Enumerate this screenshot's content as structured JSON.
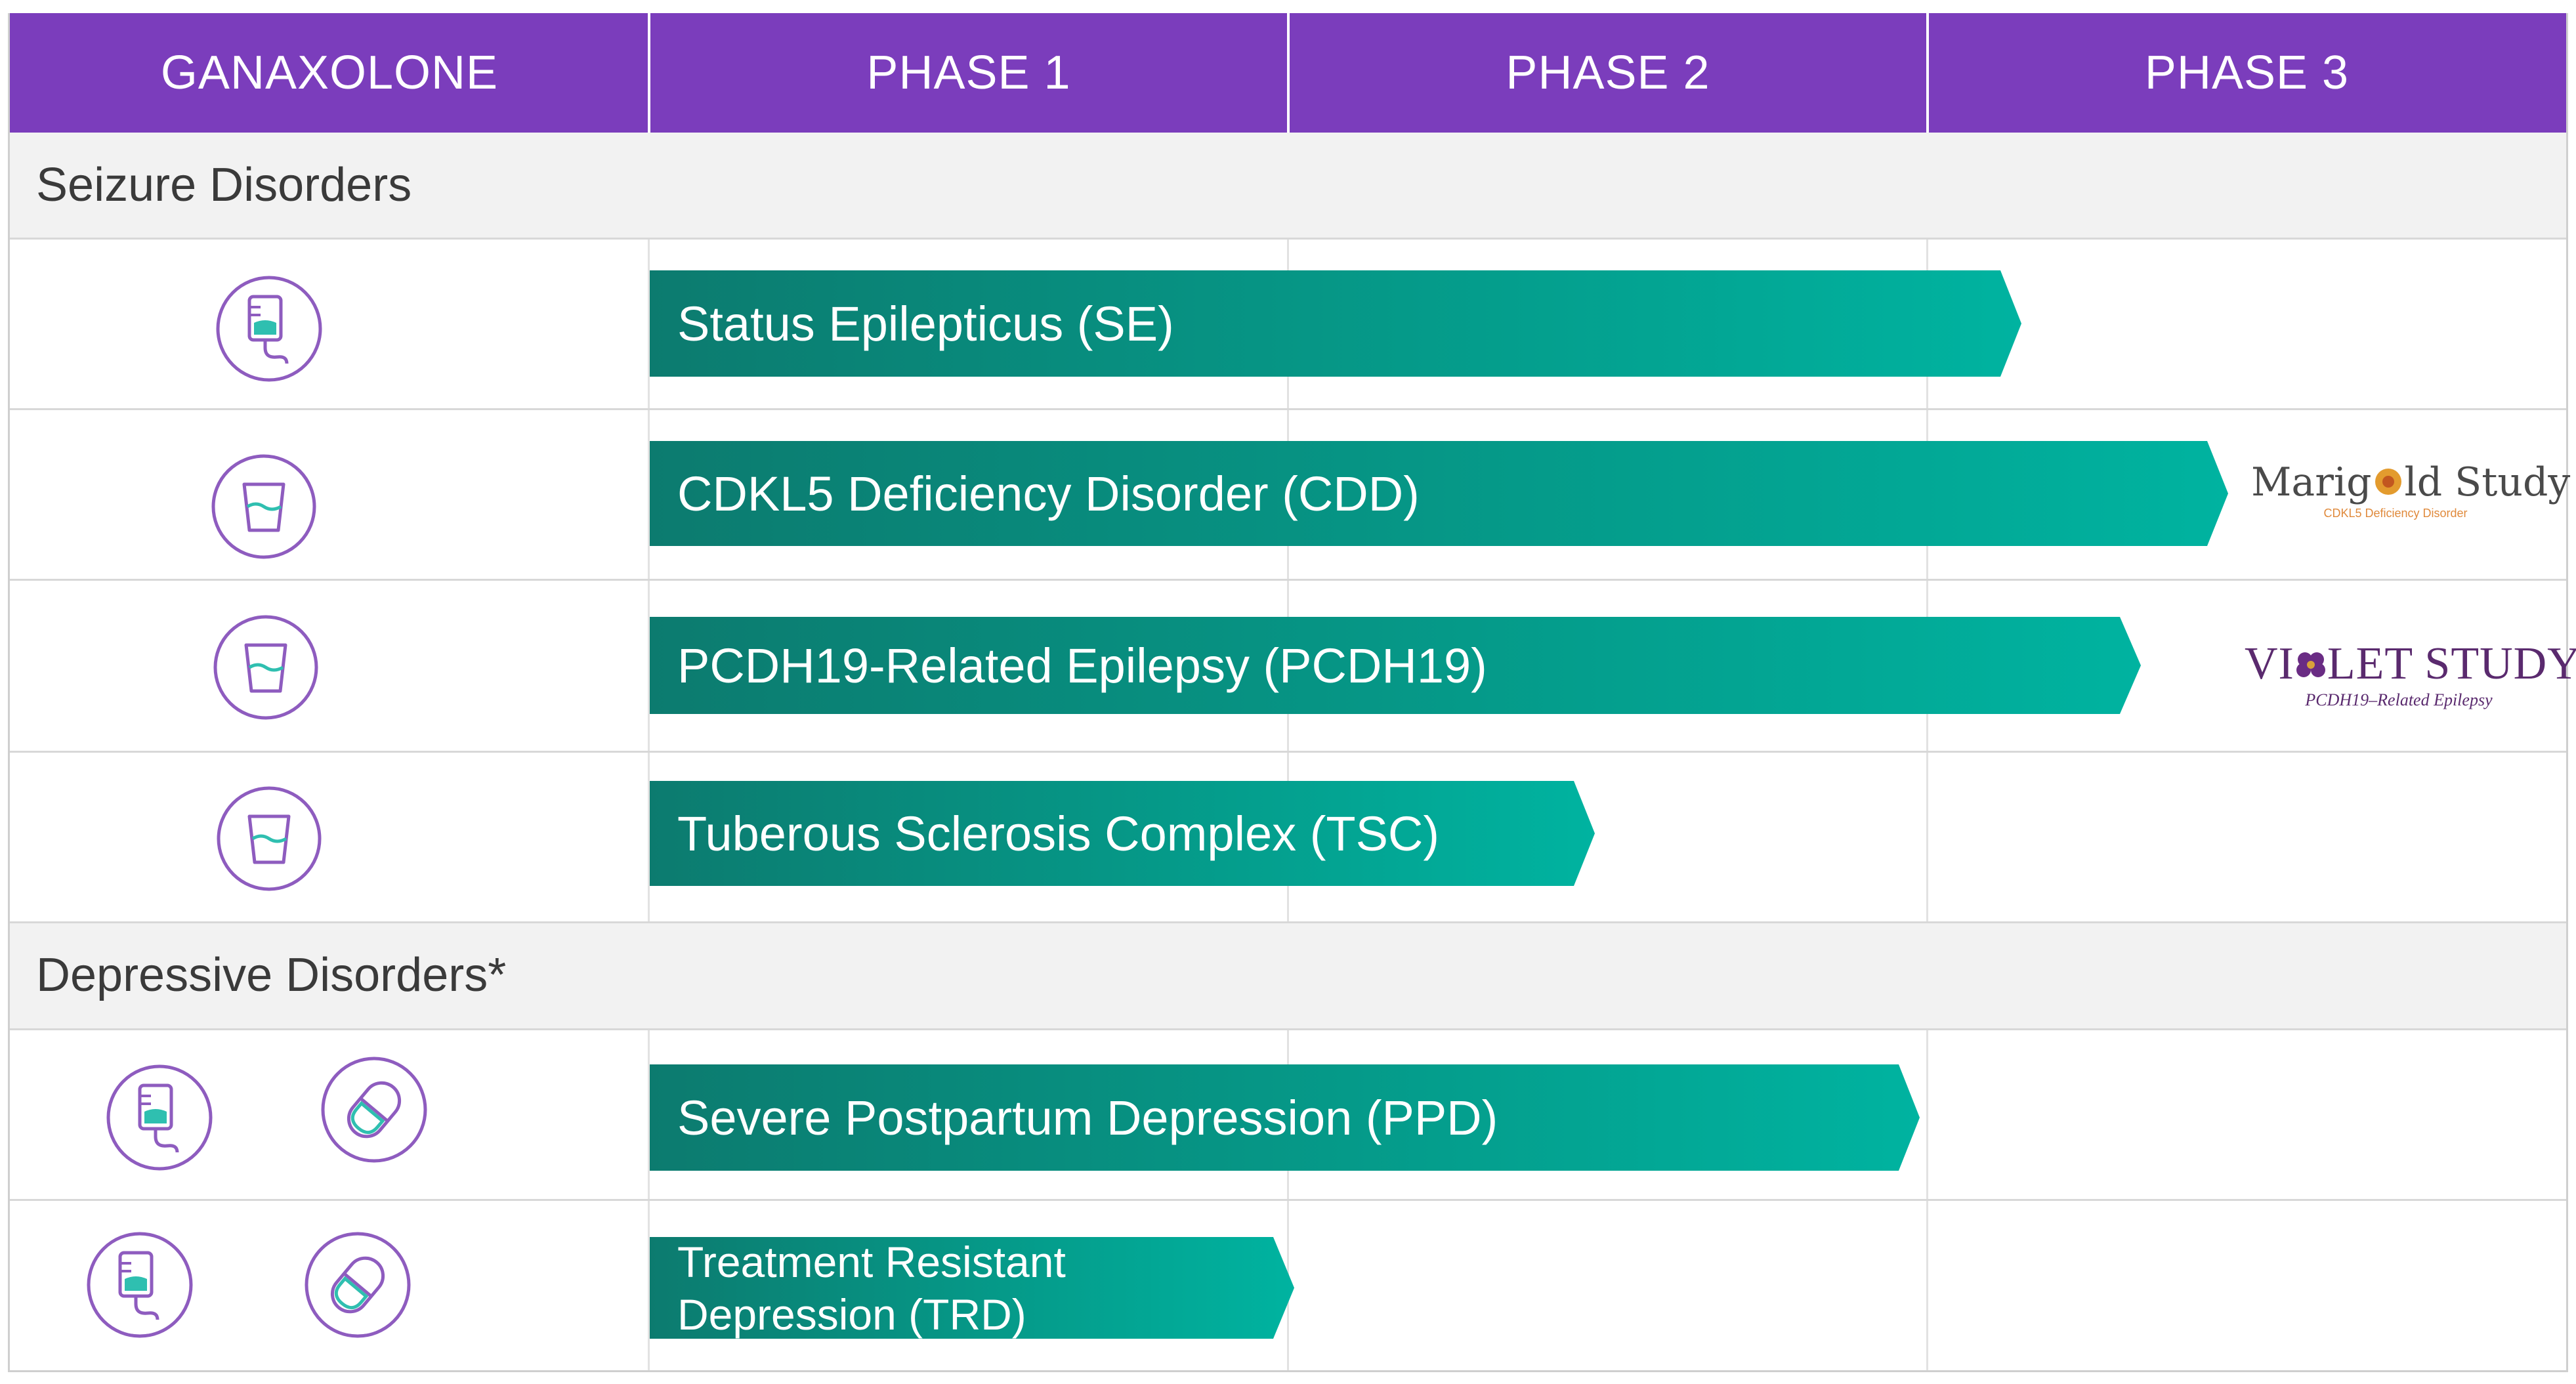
{
  "header": {
    "col0": "GANAXOLONE",
    "col1": "PHASE 1",
    "col2": "PHASE 2",
    "col3": "PHASE 3"
  },
  "sections": {
    "seizure": "Seizure Disorders",
    "depressive": "Depressive Disorders*"
  },
  "programs": {
    "se": "Status Epilepticus (SE)",
    "cdd": "CDKL5 Deficiency Disorder (CDD)",
    "pcdh19": "PCDH19-Related Epilepsy (PCDH19)",
    "tsc": "Tuberous Sclerosis Complex (TSC)",
    "ppd": "Severe Postpartum Depression (PPD)",
    "trd_line1": "Treatment Resistant",
    "trd_line2": "Depression (TRD)"
  },
  "studies": {
    "marigold_title_a": "Marig",
    "marigold_title_b": "ld Study",
    "marigold_sub": "CDKL5 Deficiency Disorder",
    "violet_title_a": "VI",
    "violet_title_b": "LET STUDY",
    "violet_sub": "PCDH19–Related Epilepsy"
  },
  "colors": {
    "header_bg": "#7b3dbc",
    "bar_start": "#0c7b6f",
    "bar_end": "#00b3a0",
    "icon_stroke": "#8e5cbf",
    "icon_fill": "#2fbfb0"
  },
  "icons": [
    "iv-bag-icon",
    "cup-icon",
    "capsule-icon",
    "flower-icon"
  ]
}
